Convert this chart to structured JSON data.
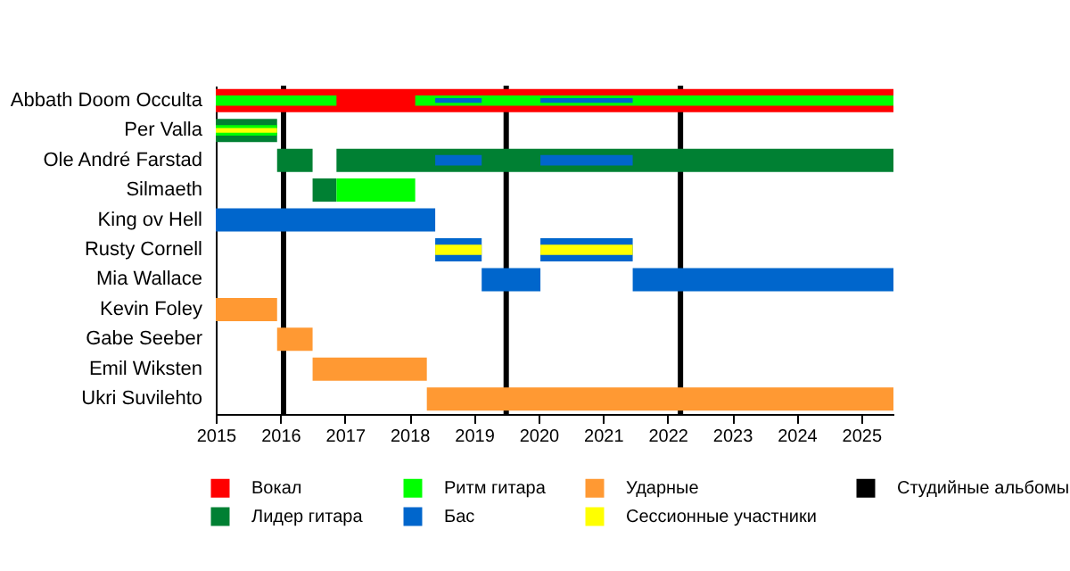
{
  "chart_data": {
    "type": "bar",
    "orientation": "horizontal",
    "legend": "bottom",
    "categories": [
      "Abbath Doom Occulta",
      "Per Valla",
      "Ole André Farstad",
      "Silmaeth",
      "King ov Hell",
      "Rusty Cornell",
      "Mia Wallace",
      "Kevin Foley",
      "Gabe Seeber",
      "Emil Wiksten",
      "Ukri Suvilehto"
    ],
    "xlim": [
      2015,
      2025.5
    ],
    "xticks": [
      2015,
      2016,
      2017,
      2018,
      2019,
      2020,
      2021,
      2022,
      2023,
      2024,
      2025
    ],
    "series": [
      {
        "name": "Вокал",
        "color": "#ff0000",
        "base": [
          2015,
          null,
          null,
          null,
          null,
          null,
          null,
          null,
          null,
          null,
          null
        ],
        "values": [
          10.5,
          null,
          null,
          null,
          null,
          null,
          null,
          null,
          null,
          null,
          null
        ]
      },
      {
        "name": "Лидер гитара",
        "color": "#008033",
        "base": [
          null,
          2015,
          2015.95,
          2016.5,
          null,
          null,
          null,
          null,
          null,
          null,
          null
        ],
        "values": [
          null,
          0.95,
          0.55,
          0.37,
          null,
          null,
          null,
          null,
          null,
          null,
          null
        ]
      },
      {
        "color": "#008033",
        "base": [
          null,
          null,
          2016.87,
          null,
          null,
          null,
          null,
          null,
          null,
          null,
          null
        ],
        "values": [
          null,
          null,
          8.63,
          null,
          null,
          null,
          null,
          null,
          null,
          null,
          null
        ]
      },
      {
        "name": "Ритм гитара",
        "color": "#00ff00",
        "base": [
          2015,
          2015,
          null,
          2016.87,
          null,
          null,
          null,
          null,
          null,
          null,
          null
        ],
        "values": [
          1.87,
          0.95,
          null,
          1.22,
          null,
          null,
          null,
          null,
          null,
          null,
          null
        ]
      },
      {
        "color": "#00ff00",
        "base": [
          2018.09,
          null,
          null,
          null,
          null,
          null,
          null,
          null,
          null,
          null,
          null
        ],
        "values": [
          7.41,
          null,
          null,
          null,
          null,
          null,
          null,
          null,
          null,
          null,
          null
        ]
      },
      {
        "name": "Бас",
        "color": "#0066cc",
        "base": [
          2018.4,
          null,
          2018.4,
          null,
          2015,
          2018.4,
          2019.12,
          null,
          null,
          null,
          null
        ],
        "values": [
          0.72,
          null,
          0.72,
          null,
          3.4,
          0.72,
          0.91,
          null,
          null,
          null,
          null
        ]
      },
      {
        "color": "#0066cc",
        "base": [
          2020.03,
          null,
          2020.03,
          null,
          null,
          2020.03,
          2021.46,
          null,
          null,
          null,
          null
        ],
        "values": [
          1.43,
          null,
          1.43,
          null,
          null,
          1.43,
          4.04,
          null,
          null,
          null,
          null
        ]
      },
      {
        "name": "Ударные",
        "color": "#ff9933",
        "base": [
          null,
          null,
          null,
          null,
          null,
          null,
          null,
          2015,
          2015.95,
          2016.5,
          2018.27
        ],
        "values": [
          null,
          null,
          null,
          null,
          null,
          null,
          null,
          0.95,
          0.55,
          1.77,
          7.23
        ]
      },
      {
        "name": "Сессионные участники",
        "color": "#ffff00",
        "base": [
          null,
          2015,
          null,
          null,
          null,
          2018.4,
          null,
          null,
          null,
          null,
          null
        ],
        "values": [
          null,
          0.95,
          null,
          null,
          null,
          0.72,
          null,
          null,
          null,
          null,
          null
        ]
      },
      {
        "color": "#ffff00",
        "base": [
          null,
          null,
          null,
          null,
          null,
          2020.03,
          null,
          null,
          null,
          null,
          null
        ],
        "values": [
          null,
          null,
          null,
          null,
          null,
          1.43,
          null,
          null,
          null,
          null,
          null
        ]
      }
    ],
    "ref_lines": [
      {
        "axis": "x",
        "value": 2016.05,
        "label": "Студийные альбомы",
        "color": "#000000"
      },
      {
        "axis": "x",
        "value": 2019.5,
        "color": "#000000"
      },
      {
        "axis": "x",
        "value": 2022.2,
        "color": "#000000"
      }
    ]
  }
}
